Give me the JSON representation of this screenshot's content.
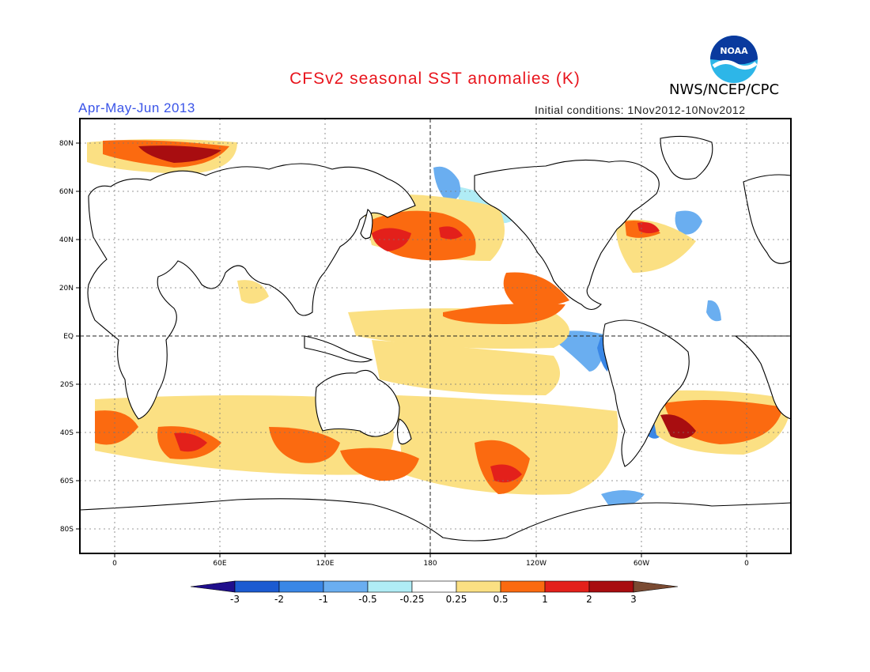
{
  "header": {
    "title": "CFSv2 seasonal SST anomalies (K)",
    "agency": "NWS/NCEP/CPC",
    "period": "Apr-May-Jun 2013",
    "initial_conditions": "Initial conditions: 1Nov2012-10Nov2012",
    "logo_text": "NOAA"
  },
  "map": {
    "lat_labels": [
      "80N",
      "60N",
      "40N",
      "20N",
      "EQ",
      "20S",
      "40S",
      "60S",
      "80S"
    ],
    "lon_labels": [
      "0",
      "60E",
      "120E",
      "180",
      "120W",
      "60W",
      "0"
    ]
  },
  "colorbar": {
    "labels": [
      "-3",
      "-2",
      "-1",
      "-0.5",
      "-0.25",
      "0.25",
      "0.5",
      "1",
      "2",
      "3"
    ],
    "colors": [
      "#1f0e8c",
      "#1c5bd1",
      "#3a87e6",
      "#6aaef0",
      "#b0ecf5",
      "#ffffff",
      "#fbe083",
      "#fb6a10",
      "#e3201b",
      "#a80d10",
      "#7a4a32"
    ]
  },
  "colors": {
    "title": "#e8141c",
    "period": "#3a54e8",
    "cold": "#3a87e6",
    "warm": "#fb6a10"
  }
}
